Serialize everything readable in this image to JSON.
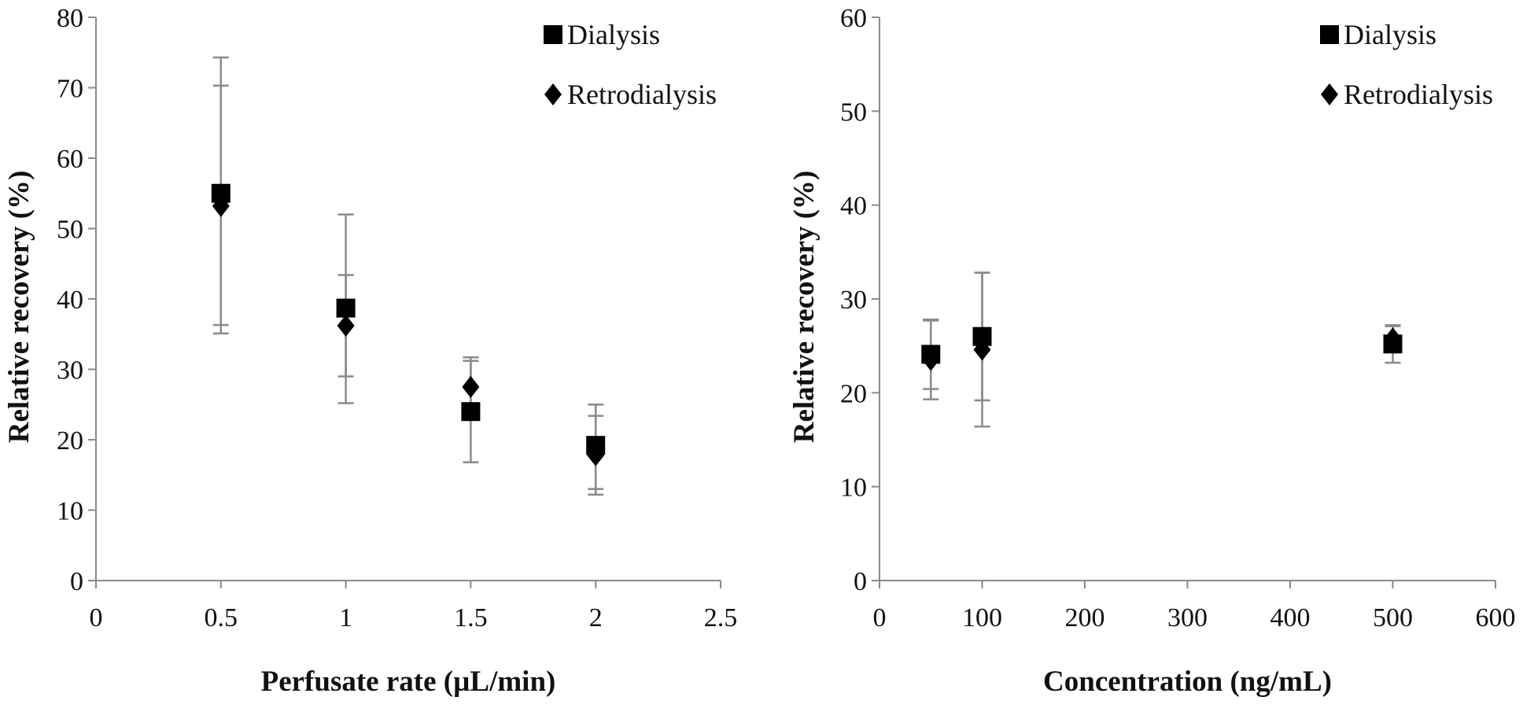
{
  "chart_data": [
    {
      "type": "scatter",
      "xlabel": "Perfusate rate (µL/min)",
      "ylabel": "Relative recovery (%)",
      "xlim": [
        0,
        2.5
      ],
      "ylim": [
        0,
        80
      ],
      "x_ticks": [
        0,
        0.5,
        1,
        1.5,
        2,
        2.5
      ],
      "x_tick_labels": [
        "0",
        "0.5",
        "1",
        "1.5",
        "2",
        "2.5"
      ],
      "y_ticks": [
        0,
        10,
        20,
        30,
        40,
        50,
        60,
        70,
        80
      ],
      "y_tick_labels": [
        "0",
        "10",
        "20",
        "30",
        "40",
        "50",
        "60",
        "70",
        "80"
      ],
      "legend": "top-right",
      "grid": false,
      "series": [
        {
          "name": "Dialysis",
          "marker": "square",
          "points": [
            {
              "x": 0.5,
              "y": 55,
              "err_low": 36.3,
              "err_high": 74.3
            },
            {
              "x": 1,
              "y": 38.7,
              "err_low": 25.2,
              "err_high": 52
            },
            {
              "x": 1.5,
              "y": 24,
              "err_low": 16.8,
              "err_high": 31.2
            },
            {
              "x": 2,
              "y": 19.2,
              "err_low": 13,
              "err_high": 25
            }
          ]
        },
        {
          "name": "Retrodialysis",
          "marker": "diamond",
          "points": [
            {
              "x": 0.5,
              "y": 53.2,
              "err_low": 35.1,
              "err_high": 70.3
            },
            {
              "x": 1,
              "y": 36.2,
              "err_low": 29,
              "err_high": 43.4
            },
            {
              "x": 1.5,
              "y": 27.5,
              "err_low": 23.3,
              "err_high": 31.7
            },
            {
              "x": 2,
              "y": 17.8,
              "err_low": 12.2,
              "err_high": 23.4
            }
          ]
        }
      ]
    },
    {
      "type": "scatter",
      "xlabel": "Concentration (ng/mL)",
      "ylabel": "Relative recovery (%)",
      "xlim": [
        0,
        600
      ],
      "ylim": [
        0,
        60
      ],
      "x_ticks": [
        0,
        100,
        200,
        300,
        400,
        500,
        600
      ],
      "x_tick_labels": [
        "0",
        "100",
        "200",
        "300",
        "400",
        "500",
        "600"
      ],
      "y_ticks": [
        0,
        10,
        20,
        30,
        40,
        50,
        60
      ],
      "y_tick_labels": [
        "0",
        "10",
        "20",
        "30",
        "40",
        "50",
        "60"
      ],
      "legend": "top-right",
      "grid": false,
      "series": [
        {
          "name": "Dialysis",
          "marker": "square",
          "points": [
            {
              "x": 50,
              "y": 24.1,
              "err_low": 20.4,
              "err_high": 27.8
            },
            {
              "x": 100,
              "y": 26,
              "err_low": 19.2,
              "err_high": 32.8
            },
            {
              "x": 500,
              "y": 25.2,
              "err_low": 23.2,
              "err_high": 27.2
            }
          ]
        },
        {
          "name": "Retrodialysis",
          "marker": "diamond",
          "points": [
            {
              "x": 50,
              "y": 23.5,
              "err_low": 19.3,
              "err_high": 27.7
            },
            {
              "x": 100,
              "y": 24.6,
              "err_low": 16.4,
              "err_high": 32.8
            },
            {
              "x": 500,
              "y": 25.8,
              "err_low": 24.5,
              "err_high": 27.1
            }
          ]
        }
      ]
    }
  ]
}
